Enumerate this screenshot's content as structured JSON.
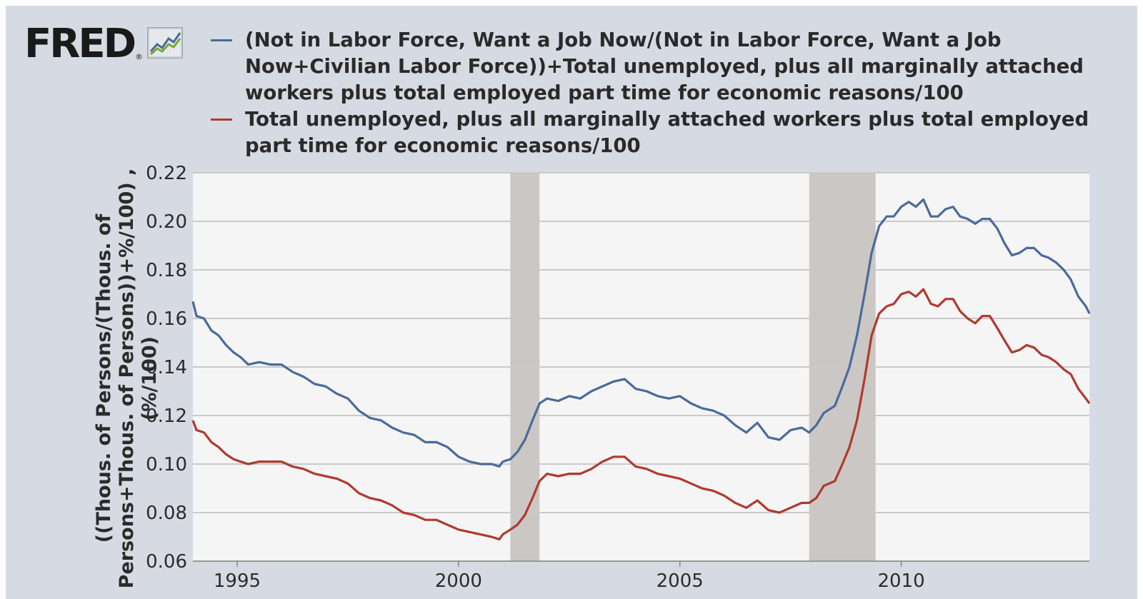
{
  "logo": {
    "text": "FRED",
    "registered": "®"
  },
  "colors": {
    "blue": "#4a6a9b",
    "red": "#b03a2e",
    "recession": "#cbc7c4",
    "grid": "#c9c9c9",
    "plot_bg": "#f5f5f5"
  },
  "chart_data": {
    "type": "line",
    "xlabel": "",
    "ylabel": "((Thous. of Persons/(Thous. of Persons+Thous. of Persons))+%/100) , (%/100)",
    "ylabel_lines": [
      "((Thous. of Persons/(Thous. of",
      "Persons+Thous. of Persons))+%/100) ,",
      "(%/100)"
    ],
    "xlim": [
      1994.0,
      2014.25
    ],
    "ylim": [
      0.06,
      0.22
    ],
    "x_ticks": [
      1995,
      2000,
      2005,
      2010
    ],
    "x_tick_labels": [
      "1995",
      "2000",
      "2005",
      "2010"
    ],
    "y_ticks": [
      0.06,
      0.08,
      0.1,
      0.12,
      0.14,
      0.16,
      0.18,
      0.2,
      0.22
    ],
    "y_tick_labels": [
      "0.06",
      "0.08",
      "0.10",
      "0.12",
      "0.14",
      "0.16",
      "0.18",
      "0.20",
      "0.22"
    ],
    "grid": "horizontal",
    "legend_position": "top",
    "recessions": [
      [
        2001.17,
        2001.83
      ],
      [
        2007.92,
        2009.42
      ]
    ],
    "series": [
      {
        "name": "(Not in Labor Force, Want a Job Now/(Not in Labor Force, Want a Job Now+Civilian Labor Force))+Total unemployed, plus all marginally attached workers plus total employed part time for economic reasons/100",
        "color": "#4a6a9b",
        "points": [
          [
            1994.0,
            0.167
          ],
          [
            1994.08,
            0.161
          ],
          [
            1994.25,
            0.16
          ],
          [
            1994.42,
            0.155
          ],
          [
            1994.58,
            0.153
          ],
          [
            1994.75,
            0.149
          ],
          [
            1994.92,
            0.146
          ],
          [
            1995.08,
            0.144
          ],
          [
            1995.25,
            0.141
          ],
          [
            1995.5,
            0.142
          ],
          [
            1995.75,
            0.141
          ],
          [
            1996.0,
            0.141
          ],
          [
            1996.25,
            0.138
          ],
          [
            1996.5,
            0.136
          ],
          [
            1996.75,
            0.133
          ],
          [
            1997.0,
            0.132
          ],
          [
            1997.25,
            0.129
          ],
          [
            1997.5,
            0.127
          ],
          [
            1997.75,
            0.122
          ],
          [
            1998.0,
            0.119
          ],
          [
            1998.25,
            0.118
          ],
          [
            1998.5,
            0.115
          ],
          [
            1998.75,
            0.113
          ],
          [
            1999.0,
            0.112
          ],
          [
            1999.25,
            0.109
          ],
          [
            1999.5,
            0.109
          ],
          [
            1999.75,
            0.107
          ],
          [
            2000.0,
            0.103
          ],
          [
            2000.25,
            0.101
          ],
          [
            2000.5,
            0.1
          ],
          [
            2000.75,
            0.1
          ],
          [
            2000.92,
            0.099
          ],
          [
            2001.0,
            0.101
          ],
          [
            2001.17,
            0.102
          ],
          [
            2001.33,
            0.105
          ],
          [
            2001.5,
            0.11
          ],
          [
            2001.67,
            0.118
          ],
          [
            2001.83,
            0.125
          ],
          [
            2002.0,
            0.127
          ],
          [
            2002.25,
            0.126
          ],
          [
            2002.5,
            0.128
          ],
          [
            2002.75,
            0.127
          ],
          [
            2003.0,
            0.13
          ],
          [
            2003.25,
            0.132
          ],
          [
            2003.5,
            0.134
          ],
          [
            2003.75,
            0.135
          ],
          [
            2004.0,
            0.131
          ],
          [
            2004.25,
            0.13
          ],
          [
            2004.5,
            0.128
          ],
          [
            2004.75,
            0.127
          ],
          [
            2005.0,
            0.128
          ],
          [
            2005.25,
            0.125
          ],
          [
            2005.5,
            0.123
          ],
          [
            2005.75,
            0.122
          ],
          [
            2006.0,
            0.12
          ],
          [
            2006.25,
            0.116
          ],
          [
            2006.5,
            0.113
          ],
          [
            2006.75,
            0.117
          ],
          [
            2007.0,
            0.111
          ],
          [
            2007.25,
            0.11
          ],
          [
            2007.5,
            0.114
          ],
          [
            2007.75,
            0.115
          ],
          [
            2007.92,
            0.113
          ],
          [
            2008.08,
            0.116
          ],
          [
            2008.25,
            0.121
          ],
          [
            2008.5,
            0.124
          ],
          [
            2008.67,
            0.132
          ],
          [
            2008.83,
            0.14
          ],
          [
            2009.0,
            0.153
          ],
          [
            2009.17,
            0.17
          ],
          [
            2009.33,
            0.187
          ],
          [
            2009.5,
            0.198
          ],
          [
            2009.67,
            0.202
          ],
          [
            2009.83,
            0.202
          ],
          [
            2010.0,
            0.206
          ],
          [
            2010.17,
            0.208
          ],
          [
            2010.33,
            0.206
          ],
          [
            2010.5,
            0.209
          ],
          [
            2010.67,
            0.202
          ],
          [
            2010.83,
            0.202
          ],
          [
            2011.0,
            0.205
          ],
          [
            2011.17,
            0.206
          ],
          [
            2011.33,
            0.202
          ],
          [
            2011.5,
            0.201
          ],
          [
            2011.67,
            0.199
          ],
          [
            2011.83,
            0.201
          ],
          [
            2012.0,
            0.201
          ],
          [
            2012.17,
            0.197
          ],
          [
            2012.33,
            0.191
          ],
          [
            2012.5,
            0.186
          ],
          [
            2012.67,
            0.187
          ],
          [
            2012.83,
            0.189
          ],
          [
            2013.0,
            0.189
          ],
          [
            2013.17,
            0.186
          ],
          [
            2013.33,
            0.185
          ],
          [
            2013.5,
            0.183
          ],
          [
            2013.67,
            0.18
          ],
          [
            2013.83,
            0.176
          ],
          [
            2014.0,
            0.169
          ],
          [
            2014.17,
            0.165
          ],
          [
            2014.25,
            0.162
          ]
        ]
      },
      {
        "name": "Total unemployed, plus all marginally attached workers plus total employed part time for economic reasons/100",
        "color": "#b03a2e",
        "points": [
          [
            1994.0,
            0.118
          ],
          [
            1994.08,
            0.114
          ],
          [
            1994.25,
            0.113
          ],
          [
            1994.42,
            0.109
          ],
          [
            1994.58,
            0.107
          ],
          [
            1994.75,
            0.104
          ],
          [
            1994.92,
            0.102
          ],
          [
            1995.08,
            0.101
          ],
          [
            1995.25,
            0.1
          ],
          [
            1995.5,
            0.101
          ],
          [
            1995.75,
            0.101
          ],
          [
            1996.0,
            0.101
          ],
          [
            1996.25,
            0.099
          ],
          [
            1996.5,
            0.098
          ],
          [
            1996.75,
            0.096
          ],
          [
            1997.0,
            0.095
          ],
          [
            1997.25,
            0.094
          ],
          [
            1997.5,
            0.092
          ],
          [
            1997.75,
            0.088
          ],
          [
            1998.0,
            0.086
          ],
          [
            1998.25,
            0.085
          ],
          [
            1998.5,
            0.083
          ],
          [
            1998.75,
            0.08
          ],
          [
            1999.0,
            0.079
          ],
          [
            1999.25,
            0.077
          ],
          [
            1999.5,
            0.077
          ],
          [
            1999.75,
            0.075
          ],
          [
            2000.0,
            0.073
          ],
          [
            2000.25,
            0.072
          ],
          [
            2000.5,
            0.071
          ],
          [
            2000.75,
            0.07
          ],
          [
            2000.92,
            0.069
          ],
          [
            2001.0,
            0.071
          ],
          [
            2001.17,
            0.073
          ],
          [
            2001.33,
            0.075
          ],
          [
            2001.5,
            0.079
          ],
          [
            2001.67,
            0.086
          ],
          [
            2001.83,
            0.093
          ],
          [
            2002.0,
            0.096
          ],
          [
            2002.25,
            0.095
          ],
          [
            2002.5,
            0.096
          ],
          [
            2002.75,
            0.096
          ],
          [
            2003.0,
            0.098
          ],
          [
            2003.25,
            0.101
          ],
          [
            2003.5,
            0.103
          ],
          [
            2003.75,
            0.103
          ],
          [
            2004.0,
            0.099
          ],
          [
            2004.25,
            0.098
          ],
          [
            2004.5,
            0.096
          ],
          [
            2004.75,
            0.095
          ],
          [
            2005.0,
            0.094
          ],
          [
            2005.25,
            0.092
          ],
          [
            2005.5,
            0.09
          ],
          [
            2005.75,
            0.089
          ],
          [
            2006.0,
            0.087
          ],
          [
            2006.25,
            0.084
          ],
          [
            2006.5,
            0.082
          ],
          [
            2006.75,
            0.085
          ],
          [
            2007.0,
            0.081
          ],
          [
            2007.25,
            0.08
          ],
          [
            2007.5,
            0.082
          ],
          [
            2007.75,
            0.084
          ],
          [
            2007.92,
            0.084
          ],
          [
            2008.08,
            0.086
          ],
          [
            2008.25,
            0.091
          ],
          [
            2008.5,
            0.093
          ],
          [
            2008.67,
            0.1
          ],
          [
            2008.83,
            0.107
          ],
          [
            2009.0,
            0.118
          ],
          [
            2009.17,
            0.135
          ],
          [
            2009.33,
            0.153
          ],
          [
            2009.5,
            0.162
          ],
          [
            2009.67,
            0.165
          ],
          [
            2009.83,
            0.166
          ],
          [
            2010.0,
            0.17
          ],
          [
            2010.17,
            0.171
          ],
          [
            2010.33,
            0.169
          ],
          [
            2010.5,
            0.172
          ],
          [
            2010.67,
            0.166
          ],
          [
            2010.83,
            0.165
          ],
          [
            2011.0,
            0.168
          ],
          [
            2011.17,
            0.168
          ],
          [
            2011.33,
            0.163
          ],
          [
            2011.5,
            0.16
          ],
          [
            2011.67,
            0.158
          ],
          [
            2011.83,
            0.161
          ],
          [
            2012.0,
            0.161
          ],
          [
            2012.17,
            0.156
          ],
          [
            2012.33,
            0.151
          ],
          [
            2012.5,
            0.146
          ],
          [
            2012.67,
            0.147
          ],
          [
            2012.83,
            0.149
          ],
          [
            2013.0,
            0.148
          ],
          [
            2013.17,
            0.145
          ],
          [
            2013.33,
            0.144
          ],
          [
            2013.5,
            0.142
          ],
          [
            2013.67,
            0.139
          ],
          [
            2013.83,
            0.137
          ],
          [
            2014.0,
            0.131
          ],
          [
            2014.17,
            0.127
          ],
          [
            2014.25,
            0.125
          ]
        ]
      }
    ]
  }
}
